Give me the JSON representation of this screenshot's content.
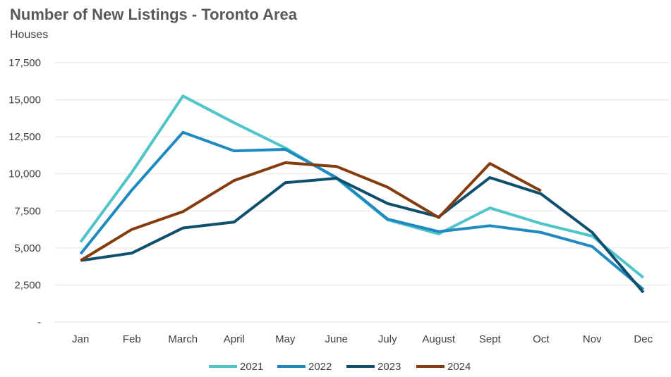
{
  "chart_data": {
    "type": "line",
    "title": "Number of New Listings - Toronto Area",
    "subtitle": "Houses",
    "xlabel": "",
    "ylabel": "",
    "categories": [
      "Jan",
      "Feb",
      "March",
      "April",
      "May",
      "June",
      "July",
      "August",
      "Sept",
      "Oct",
      "Nov",
      "Dec"
    ],
    "ylim": [
      0,
      17500
    ],
    "yticks": [
      0,
      2500,
      5000,
      7500,
      10000,
      12500,
      15000,
      17500
    ],
    "ytick_labels": [
      "-",
      "2,500",
      "5,000",
      "7,500",
      "10,000",
      "12,500",
      "15,000",
      "17,500"
    ],
    "grid": true,
    "legend_position": "bottom",
    "series": [
      {
        "name": "2021",
        "color": "#4fc4c9",
        "values": [
          5400,
          10100,
          15250,
          13450,
          11750,
          9700,
          6900,
          5950,
          7700,
          6650,
          5800,
          3000
        ]
      },
      {
        "name": "2022",
        "color": "#1f8ac0",
        "values": [
          4600,
          8900,
          12800,
          11550,
          11650,
          9750,
          6950,
          6100,
          6500,
          6050,
          5100,
          2200
        ]
      },
      {
        "name": "2023",
        "color": "#0e4f6e",
        "values": [
          4150,
          4650,
          6350,
          6750,
          9400,
          9700,
          8000,
          7100,
          9750,
          8650,
          6050,
          2000
        ]
      },
      {
        "name": "2024",
        "color": "#843c0c",
        "values": [
          4150,
          6250,
          7450,
          9550,
          10750,
          10500,
          9100,
          7050,
          10700,
          8850,
          null,
          null
        ]
      }
    ]
  }
}
